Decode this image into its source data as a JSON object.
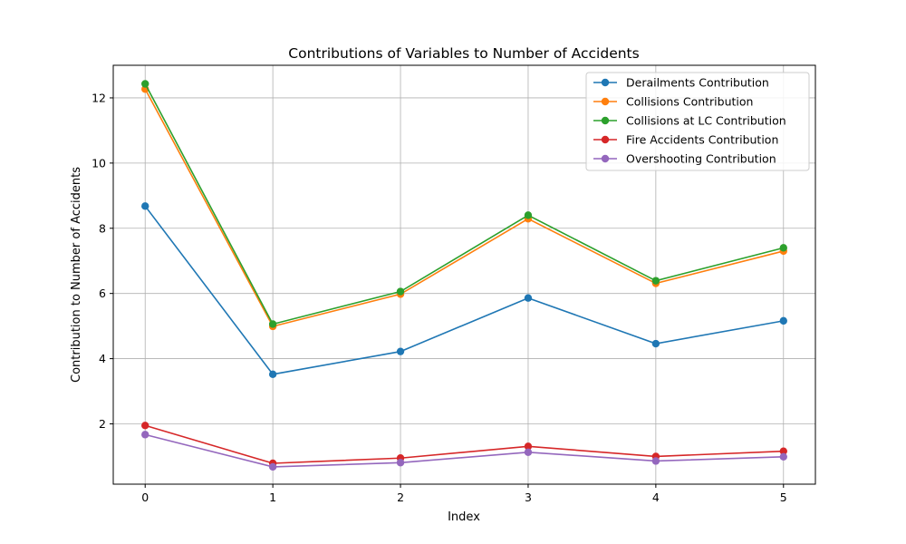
{
  "chart_data": {
    "type": "line",
    "title": "Contributions of Variables to Number of Accidents",
    "xlabel": "Index",
    "ylabel": "Contribution to Number of Accidents",
    "x": [
      0,
      1,
      2,
      3,
      4,
      5
    ],
    "x_ticks": [
      "0",
      "1",
      "2",
      "3",
      "4",
      "5"
    ],
    "y_ticks": [
      "2",
      "4",
      "6",
      "8",
      "10",
      "12"
    ],
    "xlim": [
      -0.25,
      5.25
    ],
    "ylim": [
      0.15,
      13.0
    ],
    "grid": true,
    "legend_position": "top-right",
    "series": [
      {
        "name": "Derailments Contribution",
        "color": "#1f77b4",
        "values": [
          8.68,
          3.52,
          4.22,
          5.86,
          4.46,
          5.16
        ]
      },
      {
        "name": "Collisions Contribution",
        "color": "#ff7f0e",
        "values": [
          12.27,
          4.99,
          5.98,
          8.29,
          6.31,
          7.3
        ]
      },
      {
        "name": "Collisions at LC Contribution",
        "color": "#2ca02c",
        "values": [
          12.43,
          5.06,
          6.06,
          8.4,
          6.39,
          7.4
        ]
      },
      {
        "name": "Fire Accidents Contribution",
        "color": "#d62728",
        "values": [
          1.95,
          0.79,
          0.95,
          1.31,
          1.0,
          1.16
        ]
      },
      {
        "name": "Overshooting  Contribution",
        "color": "#9467bd",
        "values": [
          1.67,
          0.68,
          0.81,
          1.13,
          0.86,
          0.99
        ]
      }
    ]
  }
}
